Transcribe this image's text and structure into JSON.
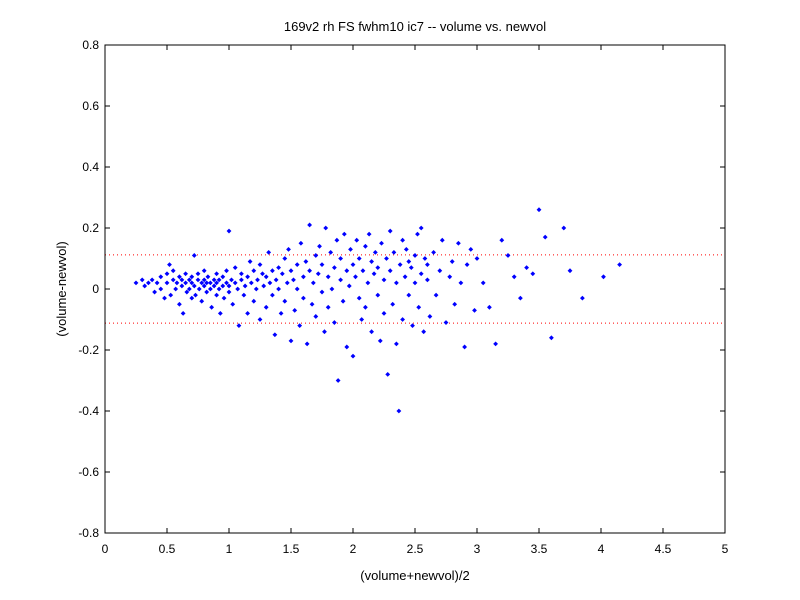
{
  "chart_data": {
    "type": "scatter",
    "title": "169v2 rh FS fwhm10 ic7 -- volume vs. newvol",
    "xlabel": "(volume+newvol)/2",
    "ylabel": "(volume-newvol)",
    "xlim": [
      0,
      5
    ],
    "ylim": [
      -0.8,
      0.8
    ],
    "xticks": [
      0,
      0.5,
      1,
      1.5,
      2,
      2.5,
      3,
      3.5,
      4,
      4.5,
      5
    ],
    "xtick_labels": [
      "0",
      "0.5",
      "1",
      "1.5",
      "2",
      "2.5",
      "3",
      "3.5",
      "4",
      "4.5",
      "5"
    ],
    "yticks": [
      -0.8,
      -0.6,
      -0.4,
      -0.2,
      0,
      0.2,
      0.4,
      0.6,
      0.8
    ],
    "ytick_labels": [
      "-0.8",
      "-0.6",
      "-0.4",
      "-0.2",
      "0",
      "0.2",
      "0.4",
      "0.6",
      "0.8"
    ],
    "grid": false,
    "colors": {
      "points": "#0000ff",
      "reference_lines": "#ff0000",
      "axes": "#000000"
    },
    "reference_lines": {
      "y": [
        0.112,
        -0.112
      ],
      "style": "dotted"
    },
    "series": [
      {
        "marker": "diamond",
        "points": [
          [
            0.25,
            0.02
          ],
          [
            0.3,
            0.03
          ],
          [
            0.32,
            0.01
          ],
          [
            0.35,
            0.02
          ],
          [
            0.38,
            0.03
          ],
          [
            0.4,
            -0.01
          ],
          [
            0.42,
            0.02
          ],
          [
            0.45,
            0.04
          ],
          [
            0.45,
            0.0
          ],
          [
            0.48,
            -0.03
          ],
          [
            0.5,
            0.02
          ],
          [
            0.5,
            0.05
          ],
          [
            0.52,
            0.08
          ],
          [
            0.53,
            -0.02
          ],
          [
            0.55,
            0.03
          ],
          [
            0.55,
            0.06
          ],
          [
            0.57,
            0.0
          ],
          [
            0.58,
            0.02
          ],
          [
            0.6,
            0.04
          ],
          [
            0.6,
            -0.05
          ],
          [
            0.62,
            0.01
          ],
          [
            0.62,
            0.03
          ],
          [
            0.63,
            -0.08
          ],
          [
            0.65,
            0.02
          ],
          [
            0.65,
            0.05
          ],
          [
            0.66,
            -0.01
          ],
          [
            0.68,
            0.03
          ],
          [
            0.68,
            0.0
          ],
          [
            0.7,
            0.02
          ],
          [
            0.7,
            0.04
          ],
          [
            0.7,
            -0.03
          ],
          [
            0.72,
            0.11
          ],
          [
            0.72,
            0.01
          ],
          [
            0.73,
            -0.02
          ],
          [
            0.75,
            0.03
          ],
          [
            0.75,
            0.05
          ],
          [
            0.76,
            0.0
          ],
          [
            0.78,
            0.02
          ],
          [
            0.78,
            -0.04
          ],
          [
            0.8,
            0.01
          ],
          [
            0.8,
            0.03
          ],
          [
            0.8,
            0.06
          ],
          [
            0.82,
            -0.01
          ],
          [
            0.82,
            0.02
          ],
          [
            0.83,
            0.04
          ],
          [
            0.85,
            0.0
          ],
          [
            0.85,
            0.02
          ],
          [
            0.86,
            -0.06
          ],
          [
            0.88,
            0.03
          ],
          [
            0.88,
            0.01
          ],
          [
            0.9,
            0.02
          ],
          [
            0.9,
            -0.02
          ],
          [
            0.9,
            0.05
          ],
          [
            0.92,
            0.0
          ],
          [
            0.92,
            0.03
          ],
          [
            0.93,
            -0.08
          ],
          [
            0.95,
            0.01
          ],
          [
            0.95,
            0.04
          ],
          [
            0.96,
            -0.03
          ],
          [
            0.98,
            0.02
          ],
          [
            0.98,
            0.06
          ],
          [
            1.0,
            0.01
          ],
          [
            1.0,
            -0.01
          ],
          [
            1.0,
            0.19
          ],
          [
            1.02,
            0.03
          ],
          [
            1.03,
            -0.05
          ],
          [
            1.05,
            0.02
          ],
          [
            1.05,
            0.07
          ],
          [
            1.07,
            0.0
          ],
          [
            1.08,
            -0.12
          ],
          [
            1.1,
            0.03
          ],
          [
            1.1,
            0.05
          ],
          [
            1.12,
            -0.02
          ],
          [
            1.13,
            0.01
          ],
          [
            1.15,
            0.04
          ],
          [
            1.15,
            -0.08
          ],
          [
            1.17,
            0.09
          ],
          [
            1.18,
            0.02
          ],
          [
            1.2,
            0.06
          ],
          [
            1.2,
            -0.04
          ],
          [
            1.22,
            0.0
          ],
          [
            1.23,
            0.03
          ],
          [
            1.25,
            0.08
          ],
          [
            1.25,
            -0.1
          ],
          [
            1.27,
            0.05
          ],
          [
            1.28,
            0.01
          ],
          [
            1.3,
            0.04
          ],
          [
            1.3,
            -0.06
          ],
          [
            1.32,
            0.12
          ],
          [
            1.33,
            0.02
          ],
          [
            1.35,
            0.06
          ],
          [
            1.35,
            -0.02
          ],
          [
            1.37,
            -0.15
          ],
          [
            1.38,
            0.03
          ],
          [
            1.4,
            0.07
          ],
          [
            1.4,
            0.0
          ],
          [
            1.42,
            -0.08
          ],
          [
            1.43,
            0.05
          ],
          [
            1.45,
            0.1
          ],
          [
            1.45,
            -0.04
          ],
          [
            1.47,
            0.02
          ],
          [
            1.48,
            0.13
          ],
          [
            1.5,
            0.06
          ],
          [
            1.5,
            -0.17
          ],
          [
            1.52,
            0.03
          ],
          [
            1.53,
            -0.07
          ],
          [
            1.55,
            0.08
          ],
          [
            1.55,
            0.0
          ],
          [
            1.57,
            -0.12
          ],
          [
            1.58,
            0.15
          ],
          [
            1.6,
            0.04
          ],
          [
            1.6,
            -0.03
          ],
          [
            1.62,
            0.09
          ],
          [
            1.63,
            -0.18
          ],
          [
            1.65,
            0.21
          ],
          [
            1.65,
            0.06
          ],
          [
            1.67,
            -0.05
          ],
          [
            1.68,
            0.02
          ],
          [
            1.7,
            0.11
          ],
          [
            1.7,
            -0.09
          ],
          [
            1.72,
            0.05
          ],
          [
            1.73,
            0.14
          ],
          [
            1.75,
            -0.01
          ],
          [
            1.75,
            0.08
          ],
          [
            1.77,
            -0.14
          ],
          [
            1.78,
            0.2
          ],
          [
            1.8,
            0.04
          ],
          [
            1.8,
            -0.06
          ],
          [
            1.82,
            0.12
          ],
          [
            1.83,
            0.0
          ],
          [
            1.85,
            0.07
          ],
          [
            1.85,
            -0.11
          ],
          [
            1.87,
            0.16
          ],
          [
            1.88,
            -0.3
          ],
          [
            1.9,
            0.03
          ],
          [
            1.9,
            0.1
          ],
          [
            1.92,
            -0.04
          ],
          [
            1.93,
            0.18
          ],
          [
            1.95,
            0.06
          ],
          [
            1.95,
            -0.19
          ],
          [
            1.97,
            0.01
          ],
          [
            1.98,
            0.13
          ],
          [
            2.0,
            0.08
          ],
          [
            2.0,
            -0.22
          ],
          [
            2.02,
            0.04
          ],
          [
            2.03,
            0.16
          ],
          [
            2.05,
            -0.03
          ],
          [
            2.05,
            0.1
          ],
          [
            2.07,
            -0.1
          ],
          [
            2.08,
            0.06
          ],
          [
            2.1,
            0.14
          ],
          [
            2.1,
            -0.06
          ],
          [
            2.12,
            0.02
          ],
          [
            2.13,
            0.18
          ],
          [
            2.15,
            0.09
          ],
          [
            2.15,
            -0.14
          ],
          [
            2.17,
            0.05
          ],
          [
            2.18,
            0.12
          ],
          [
            2.2,
            -0.02
          ],
          [
            2.2,
            0.07
          ],
          [
            2.22,
            -0.17
          ],
          [
            2.23,
            0.15
          ],
          [
            2.25,
            0.03
          ],
          [
            2.25,
            -0.08
          ],
          [
            2.27,
            0.1
          ],
          [
            2.28,
            -0.28
          ],
          [
            2.3,
            0.06
          ],
          [
            2.3,
            0.19
          ],
          [
            2.32,
            -0.05
          ],
          [
            2.33,
            0.12
          ],
          [
            2.35,
            -0.18
          ],
          [
            2.35,
            0.02
          ],
          [
            2.37,
            -0.4
          ],
          [
            2.38,
            0.08
          ],
          [
            2.4,
            0.16
          ],
          [
            2.4,
            -0.1
          ],
          [
            2.42,
            0.04
          ],
          [
            2.43,
            0.13
          ],
          [
            2.45,
            -0.02
          ],
          [
            2.45,
            0.09
          ],
          [
            2.47,
            0.07
          ],
          [
            2.48,
            -0.12
          ],
          [
            2.5,
            0.11
          ],
          [
            2.5,
            0.02
          ],
          [
            2.52,
            0.18
          ],
          [
            2.53,
            -0.06
          ],
          [
            2.55,
            0.2
          ],
          [
            2.55,
            0.05
          ],
          [
            2.57,
            -0.14
          ],
          [
            2.58,
            0.1
          ],
          [
            2.6,
            0.03
          ],
          [
            2.6,
            0.08
          ],
          [
            2.62,
            -0.09
          ],
          [
            2.65,
            0.12
          ],
          [
            2.67,
            -0.02
          ],
          [
            2.7,
            0.06
          ],
          [
            2.72,
            0.16
          ],
          [
            2.75,
            -0.11
          ],
          [
            2.78,
            0.04
          ],
          [
            2.8,
            0.09
          ],
          [
            2.82,
            -0.05
          ],
          [
            2.85,
            0.15
          ],
          [
            2.87,
            0.02
          ],
          [
            2.9,
            -0.19
          ],
          [
            2.92,
            0.08
          ],
          [
            2.95,
            0.13
          ],
          [
            2.98,
            -0.07
          ],
          [
            3.0,
            0.1
          ],
          [
            3.05,
            0.02
          ],
          [
            3.1,
            -0.06
          ],
          [
            3.15,
            -0.18
          ],
          [
            3.2,
            0.16
          ],
          [
            3.25,
            0.11
          ],
          [
            3.3,
            0.04
          ],
          [
            3.35,
            -0.03
          ],
          [
            3.4,
            0.07
          ],
          [
            3.45,
            0.05
          ],
          [
            3.5,
            0.26
          ],
          [
            3.55,
            0.17
          ],
          [
            3.6,
            -0.16
          ],
          [
            3.7,
            0.2
          ],
          [
            3.75,
            0.06
          ],
          [
            3.85,
            -0.03
          ],
          [
            4.02,
            0.04
          ],
          [
            4.15,
            0.08
          ]
        ]
      }
    ]
  }
}
